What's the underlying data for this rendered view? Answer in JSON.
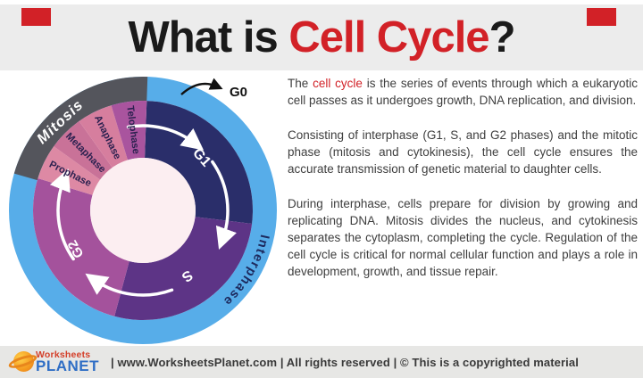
{
  "title": {
    "black_part": "What is ",
    "red_part": "Cell Cycle",
    "question_mark": "?"
  },
  "colors": {
    "accent_red": "#d22127",
    "title_black": "#1a1a1a",
    "body_text": "#3e3e3e",
    "band_bg": "#ececec",
    "footer_bg": "#e7e7e5",
    "logo_red": "#d4402a",
    "logo_blue": "#2f6ec5",
    "planet_orange": "#f59a1f"
  },
  "paragraphs": [
    {
      "runs": [
        {
          "text": "The "
        },
        {
          "text": "cell cycle",
          "accent": true
        },
        {
          "text": " is the series of events through which a eukaryotic cell passes as it undergoes growth, DNA replication, and division."
        }
      ]
    },
    {
      "runs": [
        {
          "text": "Consisting of interphase (G1, S, and G2 phases) and the mitotic phase (mitosis and cytokinesis), the cell cycle ensures the accurate transmission of genetic material to daughter cells."
        }
      ]
    },
    {
      "runs": [
        {
          "text": "During interphase, cells prepare for division by growing and replicating DNA. Mitosis divides the nucleus, and cytokinesis separates the cytoplasm, completing the cycle. Regulation of the cell cycle is critical for normal cellular function and plays a role in development, growth, and tissue repair."
        }
      ]
    }
  ],
  "diagram": {
    "outer_ring_color": "#57ade9",
    "mitosis_arc_color": "#54555c",
    "center_hole_color": "#fceef1",
    "arrow_color": "#ffffff",
    "g0": {
      "label": "G0",
      "color": "#111111"
    },
    "interphase_label": {
      "text": "Interphase",
      "color": "#1d2a5e"
    },
    "mitosis_label": {
      "text": "Mitosis",
      "color": "#ffffff"
    },
    "segments": [
      {
        "name": "g1",
        "label": "G1",
        "start": 2,
        "end": 97,
        "color": "#2a2e6a",
        "label_color": "#ffffff",
        "label_angle": 48,
        "label_r": 88,
        "font": 16,
        "orient": "tangent"
      },
      {
        "name": "s",
        "label": "S",
        "start": 97,
        "end": 195,
        "color": "#5d3486",
        "label_color": "#ffffff",
        "label_angle": 146,
        "label_r": 88,
        "font": 16,
        "orient": "tangent"
      },
      {
        "name": "g2",
        "label": "G2",
        "start": 195,
        "end": 287,
        "color": "#a4529c",
        "label_color": "#ffffff",
        "label_angle": 240,
        "label_r": 86,
        "font": 15,
        "orient": "tangent"
      },
      {
        "name": "prophase",
        "label": "Prophase",
        "start": 287,
        "end": 305.75,
        "color": "#dd89a4",
        "label_color": "#2c2150",
        "label_angle": 296.5,
        "label_r": 91,
        "font": 11.2,
        "orient": "radial"
      },
      {
        "name": "metaphase",
        "label": "Metaphase",
        "start": 305.75,
        "end": 324.5,
        "color": "#c97298",
        "label_color": "#2c2150",
        "label_angle": 315,
        "label_r": 91,
        "font": 11.2,
        "orient": "radial"
      },
      {
        "name": "anaphase",
        "label": "Anaphase",
        "start": 324.5,
        "end": 343.25,
        "color": "#d67e9e",
        "label_color": "#2c2150",
        "label_angle": 334,
        "label_r": 91,
        "font": 11.2,
        "orient": "radial"
      },
      {
        "name": "telophase",
        "label": "Telophase",
        "start": 343.25,
        "end": 362,
        "color": "#a9549e",
        "label_color": "#2c2150",
        "label_angle": 352.8,
        "label_r": 91,
        "font": 11.2,
        "orient": "radial"
      }
    ],
    "mitosis_arc": {
      "start": 286,
      "end": 362
    },
    "arrows": [
      {
        "from": 350,
        "to": 38
      },
      {
        "from": 55,
        "to": 110
      },
      {
        "from": 160,
        "to": 215
      },
      {
        "from": 235,
        "to": 292
      }
    ]
  },
  "footer": {
    "logo_top": "Worksheets",
    "logo_bottom": "PLANET",
    "text": "| www.WorksheetsPlanet.com | All rights reserved | © This is a copyrighted material"
  }
}
